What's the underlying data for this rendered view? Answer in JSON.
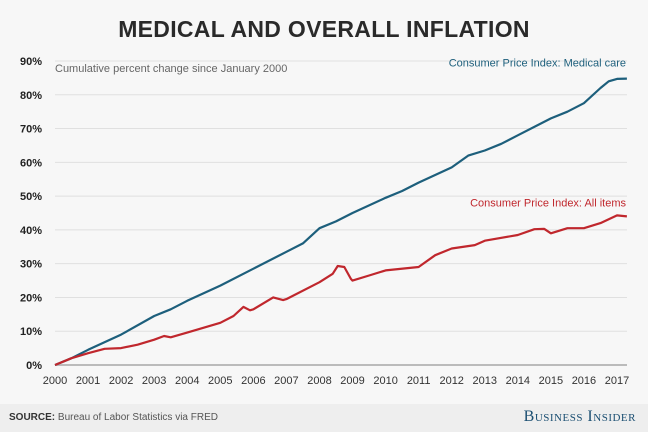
{
  "chart_data": {
    "type": "line",
    "title": "MEDICAL AND OVERALL INFLATION",
    "subtitle": "Cumulative percent change since January 2000",
    "xlabel": "",
    "ylabel": "",
    "xlim": [
      2000,
      2017.3
    ],
    "ylim": [
      0,
      90
    ],
    "x_ticks": [
      "2000",
      "2001",
      "2002",
      "2003",
      "2004",
      "2005",
      "2006",
      "2007",
      "2008",
      "2009",
      "2010",
      "2011",
      "2012",
      "2013",
      "2014",
      "2015",
      "2016",
      "2017"
    ],
    "y_ticks": [
      "0%",
      "10%",
      "20%",
      "30%",
      "40%",
      "50%",
      "60%",
      "70%",
      "80%",
      "90%"
    ],
    "grid": true,
    "series": [
      {
        "name": "Consumer Price Index: Medical care",
        "color": "#1d5f7c",
        "points": [
          [
            2000,
            0
          ],
          [
            2000.5,
            2
          ],
          [
            2001,
            4.5
          ],
          [
            2002,
            9
          ],
          [
            2003,
            14.5
          ],
          [
            2003.5,
            16.5
          ],
          [
            2004,
            19
          ],
          [
            2005,
            23.5
          ],
          [
            2006,
            28.5
          ],
          [
            2007,
            33.5
          ],
          [
            2007.5,
            36
          ],
          [
            2008,
            40.5
          ],
          [
            2008.5,
            42.5
          ],
          [
            2009,
            45
          ],
          [
            2010,
            49.5
          ],
          [
            2010.5,
            51.5
          ],
          [
            2011,
            54
          ],
          [
            2012,
            58.5
          ],
          [
            2012.5,
            62
          ],
          [
            2013,
            63.5
          ],
          [
            2013.5,
            65.5
          ],
          [
            2014,
            68
          ],
          [
            2015,
            73
          ],
          [
            2015.5,
            75
          ],
          [
            2016,
            77.5
          ],
          [
            2016.5,
            82
          ],
          [
            2016.75,
            84
          ],
          [
            2017,
            84.7
          ],
          [
            2017.3,
            84.8
          ]
        ]
      },
      {
        "name": "Consumer Price Index: All items",
        "color": "#c0272d",
        "points": [
          [
            2000,
            0
          ],
          [
            2000.5,
            2
          ],
          [
            2001,
            3.5
          ],
          [
            2001.5,
            4.8
          ],
          [
            2002,
            5
          ],
          [
            2002.5,
            6
          ],
          [
            2003,
            7.5
          ],
          [
            2003.3,
            8.6
          ],
          [
            2003.5,
            8.2
          ],
          [
            2004,
            9.6
          ],
          [
            2005,
            12.5
          ],
          [
            2005.4,
            14.5
          ],
          [
            2005.7,
            17.2
          ],
          [
            2005.9,
            16.2
          ],
          [
            2006,
            16.5
          ],
          [
            2006.6,
            20
          ],
          [
            2006.9,
            19.2
          ],
          [
            2007,
            19.5
          ],
          [
            2008,
            24.5
          ],
          [
            2008.4,
            27
          ],
          [
            2008.55,
            29.3
          ],
          [
            2008.75,
            29
          ],
          [
            2008.95,
            25.5
          ],
          [
            2009,
            25
          ],
          [
            2009.5,
            26.5
          ],
          [
            2010,
            28
          ],
          [
            2011,
            29
          ],
          [
            2011.5,
            32.5
          ],
          [
            2012,
            34.5
          ],
          [
            2012.7,
            35.5
          ],
          [
            2013,
            36.8
          ],
          [
            2014,
            38.5
          ],
          [
            2014.5,
            40.2
          ],
          [
            2014.8,
            40.3
          ],
          [
            2015,
            39
          ],
          [
            2015.5,
            40.5
          ],
          [
            2016,
            40.5
          ],
          [
            2016.5,
            42
          ],
          [
            2017,
            44.3
          ],
          [
            2017.3,
            44
          ]
        ]
      }
    ]
  },
  "footer": {
    "source_label": "SOURCE:",
    "source_text": " Bureau of Labor Statistics via FRED",
    "brand": "Business Insider"
  }
}
